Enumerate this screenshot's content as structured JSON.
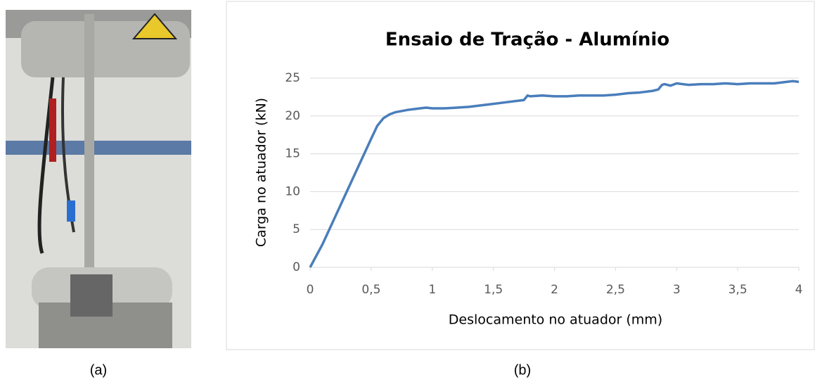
{
  "captions": [
    "(a)",
    "(b)"
  ],
  "chart_data": {
    "type": "line",
    "title": "Ensaio de Tração - Alumínio",
    "x_label": "Deslocamento no atuador (mm)",
    "y_label": "Carga no atuador (kN)",
    "x": [
      0,
      0.1,
      0.2,
      0.3,
      0.4,
      0.5,
      0.55,
      0.6,
      0.65,
      0.7,
      0.8,
      0.9,
      0.95,
      1.0,
      1.1,
      1.2,
      1.3,
      1.4,
      1.5,
      1.6,
      1.7,
      1.75,
      1.78,
      1.8,
      1.9,
      2.0,
      2.1,
      2.2,
      2.3,
      2.4,
      2.5,
      2.6,
      2.7,
      2.8,
      2.85,
      2.88,
      2.9,
      2.95,
      3.0,
      3.1,
      3.2,
      3.3,
      3.4,
      3.5,
      3.6,
      3.7,
      3.8,
      3.9,
      3.95,
      4.0
    ],
    "series": [
      {
        "color": "#4a7ebb",
        "values": [
          0,
          3,
          6.5,
          10,
          13.5,
          17,
          18.7,
          19.7,
          20.2,
          20.5,
          20.8,
          21,
          21.1,
          21,
          21,
          21.1,
          21.2,
          21.4,
          21.6,
          21.8,
          22,
          22.1,
          22.7,
          22.6,
          22.7,
          22.6,
          22.6,
          22.7,
          22.7,
          22.7,
          22.8,
          23,
          23.1,
          23.3,
          23.5,
          24.1,
          24.2,
          24,
          24.3,
          24.1,
          24.2,
          24.2,
          24.3,
          24.2,
          24.3,
          24.3,
          24.3,
          24.5,
          24.6,
          24.5
        ]
      }
    ],
    "xlim": [
      0,
      4
    ],
    "xticks": [
      0,
      {
        "value": 0.5,
        "label": "0,5"
      },
      1,
      {
        "value": 1.5,
        "label": "1,5"
      },
      2,
      {
        "value": 2.5,
        "label": "2,5"
      },
      3,
      {
        "value": 3.5,
        "label": "3,5"
      },
      4
    ],
    "ylim": [
      0,
      25
    ],
    "yticks": [
      0,
      5,
      10,
      15,
      20,
      25
    ],
    "grid": true
  }
}
